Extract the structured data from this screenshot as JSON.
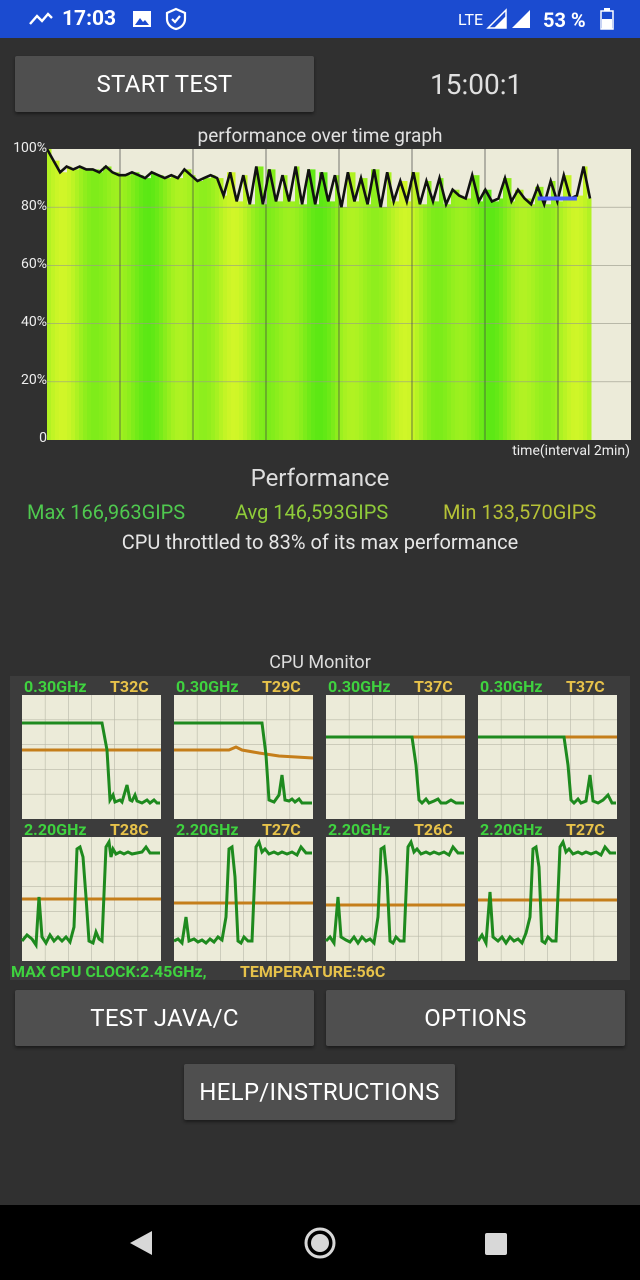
{
  "status_bar": {
    "time": "17:03",
    "network": "LTE",
    "battery": "53 %"
  },
  "controls": {
    "start_label": "START TEST",
    "timer": "15:00:1"
  },
  "graph": {
    "title": "performance over time graph",
    "y_ticks": [
      "100%",
      "80%",
      "60%",
      "40%",
      "20%",
      "0"
    ],
    "x_label": "time(interval 2min)"
  },
  "chart_data": {
    "type": "area",
    "title": "performance over time graph",
    "xlabel": "time(interval 2min)",
    "ylabel": "",
    "ylim": [
      0,
      100
    ],
    "series": [
      {
        "values": [
          100,
          96,
          92,
          94,
          93,
          94,
          93,
          93,
          92,
          94,
          92,
          91,
          91,
          92,
          91,
          90,
          92,
          91,
          90,
          91,
          90,
          93,
          91,
          89,
          90,
          91,
          90,
          84,
          92,
          82,
          91,
          81,
          94,
          81,
          93,
          82,
          91,
          82,
          94,
          81,
          93,
          81,
          92,
          82,
          91,
          80,
          92,
          82,
          90,
          81,
          93,
          80,
          92,
          82,
          89,
          82,
          92,
          81,
          89,
          82,
          90,
          81,
          86,
          84,
          83,
          91,
          82,
          86,
          82,
          83,
          90,
          82,
          86,
          83,
          81,
          87,
          81,
          89,
          82,
          91,
          83,
          84,
          94,
          83
        ]
      }
    ],
    "marker_band": {
      "x_range": [
        75,
        81
      ],
      "y": 83,
      "color": "#4d5cff"
    }
  },
  "performance": {
    "title": "Performance",
    "max": "Max 166,963GIPS",
    "avg": "Avg 146,593GIPS",
    "min": "Min 133,570GIPS",
    "throttle_text": "CPU throttled to 83% of its max performance"
  },
  "cpu_monitor": {
    "title": "CPU Monitor",
    "cores": [
      {
        "freq": "0.30GHz",
        "temp": "T32C"
      },
      {
        "freq": "0.30GHz",
        "temp": "T29C"
      },
      {
        "freq": "0.30GHz",
        "temp": "T37C"
      },
      {
        "freq": "0.30GHz",
        "temp": "T37C"
      },
      {
        "freq": "2.20GHz",
        "temp": "T28C"
      },
      {
        "freq": "2.20GHz",
        "temp": "T27C"
      },
      {
        "freq": "2.20GHz",
        "temp": "T26C"
      },
      {
        "freq": "2.20GHz",
        "temp": "T27C"
      }
    ],
    "max_clock": "MAX CPU CLOCK:2.45GHz,",
    "temperature": "TEMPERATURE:56C"
  },
  "buttons": {
    "test": "TEST JAVA/C",
    "options": "OPTIONS",
    "help": "HELP/INSTRUCTIONS"
  },
  "colors": {
    "accent_blue": "#1b4bd0",
    "freq_green": "#3fd23f",
    "temp_yellow": "#e7c24a",
    "graph_bg": "#ecebd9"
  }
}
